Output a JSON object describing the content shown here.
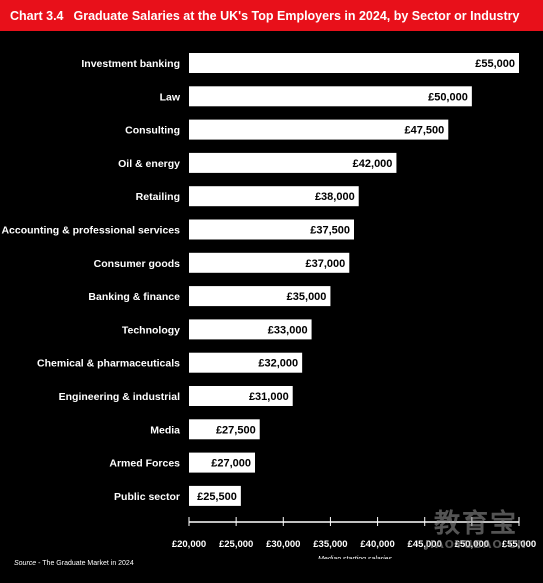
{
  "header": {
    "chart_number": "Chart 3.4",
    "title": "Graduate Salaries at the UK's Top Employers in 2024, by Sector or Industry"
  },
  "chart_data": {
    "type": "bar",
    "orientation": "horizontal",
    "title": "Graduate Salaries at the UK's Top Employers in 2024, by Sector or Industry",
    "xlabel": "Median starting salaries",
    "ylabel": "",
    "categories": [
      "Investment banking",
      "Law",
      "Consulting",
      "Oil & energy",
      "Retailing",
      "Accounting & professional services",
      "Consumer goods",
      "Banking & finance",
      "Technology",
      "Chemical & pharmaceuticals",
      "Engineering & industrial",
      "Media",
      "Armed Forces",
      "Public sector"
    ],
    "values": [
      55000,
      50000,
      47500,
      42000,
      38000,
      37500,
      37000,
      35000,
      33000,
      32000,
      31000,
      27500,
      27000,
      25500
    ],
    "value_labels": [
      "£55,000",
      "£50,000",
      "£47,500",
      "£42,000",
      "£38,000",
      "£37,500",
      "£37,000",
      "£35,000",
      "£33,000",
      "£32,000",
      "£31,000",
      "£27,500",
      "£27,000",
      "£25,500"
    ],
    "xlim": [
      20000,
      55000
    ],
    "xticks": [
      20000,
      25000,
      30000,
      35000,
      40000,
      45000,
      50000,
      55000
    ],
    "xtick_labels": [
      "£20,000",
      "£25,000",
      "£30,000",
      "£35,000",
      "£40,000",
      "£45,000",
      "£50,000",
      "£55,000"
    ],
    "grid": false,
    "bar_color": "#ffffff",
    "background_color": "#000000"
  },
  "footer": {
    "source_label": "Source",
    "source_text": " - The Graduate Market in 2024"
  },
  "watermark": {
    "text": "教育宝",
    "subtext": "JIAOYUBAO.CN"
  },
  "colors": {
    "header_background": "#e8101a",
    "header_text": "#ffffff",
    "bar": "#ffffff",
    "bar_label": "#000000",
    "background": "#000000"
  }
}
